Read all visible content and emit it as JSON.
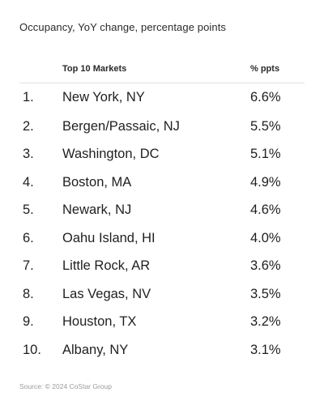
{
  "subtitle": "Occupancy, YoY change, percentage points",
  "source": "Source: © 2024 CoStar Group",
  "chart_data": {
    "type": "table",
    "title": "",
    "subtitle": "Occupancy, YoY change, percentage points",
    "columns": [
      "",
      "Top 10 Markets",
      "% ppts"
    ],
    "rows": [
      {
        "rank": "1.",
        "market": "New York, NY",
        "value": "6.6%"
      },
      {
        "rank": "2.",
        "market": "Bergen/Passaic, NJ",
        "value": "5.5%"
      },
      {
        "rank": "3.",
        "market": "Washington, DC",
        "value": "5.1%"
      },
      {
        "rank": "4.",
        "market": "Boston, MA",
        "value": "4.9%"
      },
      {
        "rank": "5.",
        "market": "Newark, NJ",
        "value": "4.6%"
      },
      {
        "rank": "6.",
        "market": "Oahu Island, HI",
        "value": "4.0%"
      },
      {
        "rank": "7.",
        "market": "Little Rock, AR",
        "value": "3.6%"
      },
      {
        "rank": "8.",
        "market": "Las Vegas, NV",
        "value": "3.5%"
      },
      {
        "rank": "9.",
        "market": "Houston, TX",
        "value": "3.2%"
      },
      {
        "rank": "10.",
        "market": "Albany, NY",
        "value": "3.1%"
      }
    ]
  }
}
